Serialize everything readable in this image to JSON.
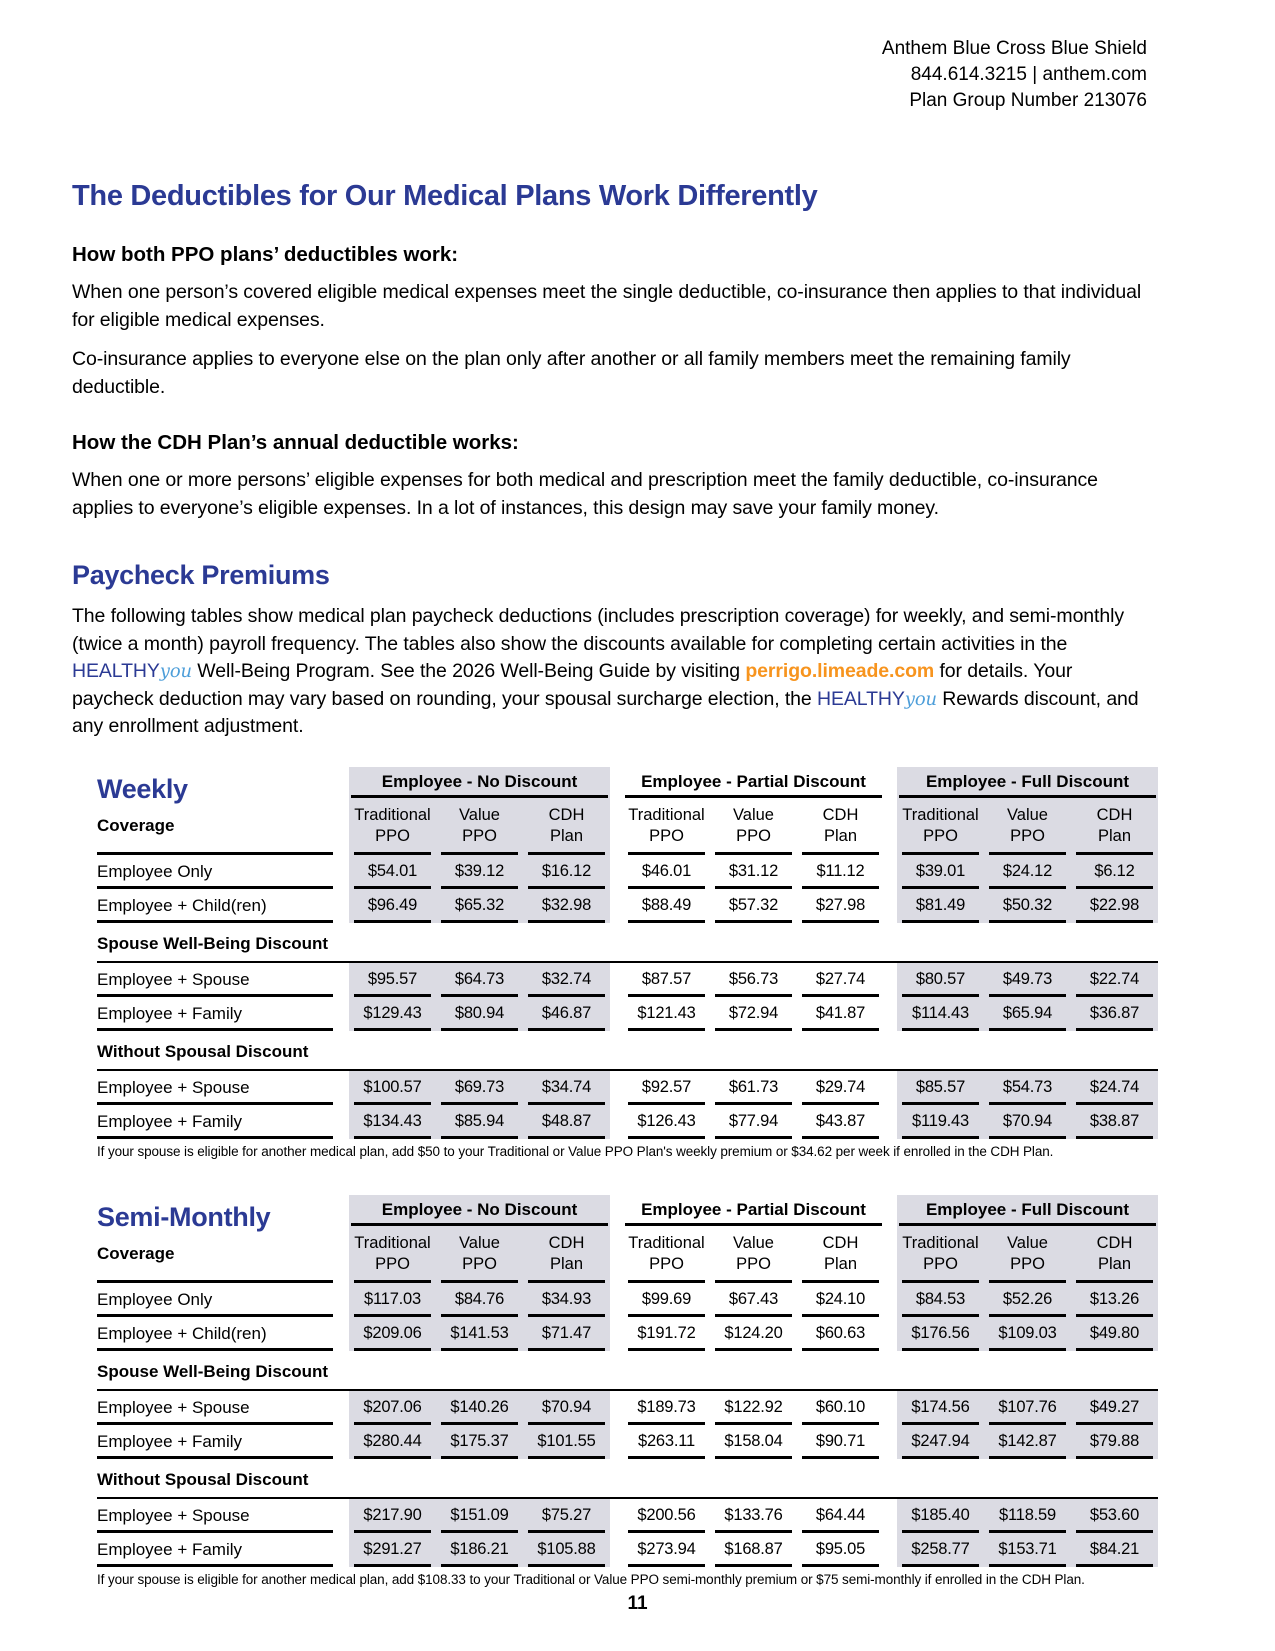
{
  "header": {
    "line1": "Anthem Blue Cross Blue Shield",
    "line2": "844.614.3215 | anthem.com",
    "line3": "Plan Group Number 213076"
  },
  "deductibles": {
    "title": "The Deductibles for Our Medical Plans Work Differently",
    "ppo_heading": "How both PPO plans’ deductibles work:",
    "ppo_para1": "When one person’s covered eligible medical expenses meet the single deductible, co-insurance then applies to that individual for eligible medical expenses.",
    "ppo_para2": "Co-insurance applies to everyone else on the plan only after another or all family members meet the remaining family deductible.",
    "cdh_heading": "How the CDH Plan’s annual deductible works:",
    "cdh_para": "When one or more persons’ eligible expenses for both medical and prescription meet the family deductible, co-insurance applies to everyone’s eligible expenses. In a lot of instances, this design may save your family money."
  },
  "premiums": {
    "title": "Paycheck Premiums",
    "intro_part1": "The following tables show medical plan paycheck deductions (includes prescription coverage) for weekly, and semi-monthly (twice a month) payroll frequency. The tables also show the discounts available for completing certain activities in the ",
    "healthy_brand": "HEALTHY",
    "healthy_script": "you",
    "intro_part2": " Well-Being Program. See the 2026 Well-Being Guide by visiting ",
    "link": "perrigo.limeade.com",
    "intro_part3": " for details. Your paycheck deduction may vary based on rounding, your spousal surcharge election, the ",
    "intro_part4": " Rewards discount, and any enrollment adjustment."
  },
  "tables": [
    {
      "title": "Weekly",
      "coverage_label": "Coverage",
      "groups": [
        "Employee - No Discount",
        "Employee - Partial Discount",
        "Employee - Full Discount"
      ],
      "columns": [
        "Traditional\nPPO",
        "Value\nPPO",
        "CDH\nPlan"
      ],
      "rows": [
        {
          "type": "data",
          "label": "Employee Only",
          "values": [
            "$54.01",
            "$39.12",
            "$16.12",
            "$46.01",
            "$31.12",
            "$11.12",
            "$39.01",
            "$24.12",
            "$6.12"
          ]
        },
        {
          "type": "data",
          "label": "Employee + Child(ren)",
          "values": [
            "$96.49",
            "$65.32",
            "$32.98",
            "$88.49",
            "$57.32",
            "$27.98",
            "$81.49",
            "$50.32",
            "$22.98"
          ]
        },
        {
          "type": "section",
          "label": "Spouse Well-Being Discount"
        },
        {
          "type": "data",
          "label": "Employee + Spouse",
          "values": [
            "$95.57",
            "$64.73",
            "$32.74",
            "$87.57",
            "$56.73",
            "$27.74",
            "$80.57",
            "$49.73",
            "$22.74"
          ]
        },
        {
          "type": "data",
          "label": "Employee + Family",
          "values": [
            "$129.43",
            "$80.94",
            "$46.87",
            "$121.43",
            "$72.94",
            "$41.87",
            "$114.43",
            "$65.94",
            "$36.87"
          ]
        },
        {
          "type": "section",
          "label": "Without Spousal Discount"
        },
        {
          "type": "data",
          "label": "Employee + Spouse",
          "values": [
            "$100.57",
            "$69.73",
            "$34.74",
            "$92.57",
            "$61.73",
            "$29.74",
            "$85.57",
            "$54.73",
            "$24.74"
          ]
        },
        {
          "type": "data",
          "label": "Employee + Family",
          "values": [
            "$134.43",
            "$85.94",
            "$48.87",
            "$126.43",
            "$77.94",
            "$43.87",
            "$119.43",
            "$70.94",
            "$38.87"
          ]
        }
      ],
      "footnote": "If your spouse is eligible for another medical plan, add $50 to your Traditional or Value PPO Plan's weekly premium or $34.62 per week if enrolled in the CDH Plan."
    },
    {
      "title": "Semi-Monthly",
      "coverage_label": "Coverage",
      "groups": [
        "Employee - No Discount",
        "Employee - Partial Discount",
        "Employee - Full Discount"
      ],
      "columns": [
        "Traditional\nPPO",
        "Value\nPPO",
        "CDH\nPlan"
      ],
      "rows": [
        {
          "type": "data",
          "label": "Employee Only",
          "values": [
            "$117.03",
            "$84.76",
            "$34.93",
            "$99.69",
            "$67.43",
            "$24.10",
            "$84.53",
            "$52.26",
            "$13.26"
          ]
        },
        {
          "type": "data",
          "label": "Employee + Child(ren)",
          "values": [
            "$209.06",
            "$141.53",
            "$71.47",
            "$191.72",
            "$124.20",
            "$60.63",
            "$176.56",
            "$109.03",
            "$49.80"
          ]
        },
        {
          "type": "section",
          "label": "Spouse Well-Being Discount"
        },
        {
          "type": "data",
          "label": "Employee + Spouse",
          "values": [
            "$207.06",
            "$140.26",
            "$70.94",
            "$189.73",
            "$122.92",
            "$60.10",
            "$174.56",
            "$107.76",
            "$49.27"
          ]
        },
        {
          "type": "data",
          "label": "Employee + Family",
          "values": [
            "$280.44",
            "$175.37",
            "$101.55",
            "$263.11",
            "$158.04",
            "$90.71",
            "$247.94",
            "$142.87",
            "$79.88"
          ]
        },
        {
          "type": "section",
          "label": "Without Spousal Discount"
        },
        {
          "type": "data",
          "label": "Employee + Spouse",
          "values": [
            "$217.90",
            "$151.09",
            "$75.27",
            "$200.56",
            "$133.76",
            "$64.44",
            "$185.40",
            "$118.59",
            "$53.60"
          ]
        },
        {
          "type": "data",
          "label": "Employee + Family",
          "values": [
            "$291.27",
            "$186.21",
            "$105.88",
            "$273.94",
            "$168.87",
            "$95.05",
            "$258.77",
            "$153.71",
            "$84.21"
          ]
        }
      ],
      "footnote": "If your spouse is eligible for another medical plan, add $108.33 to your Traditional or Value PPO semi-monthly premium or $75 semi-monthly if enrolled in the CDH Plan."
    }
  ],
  "colors": {
    "heading_blue": "#2B3A94",
    "script_blue": "#4D9ED9",
    "link_orange": "#F7941E",
    "table_gray": "#DBDBE3"
  },
  "page_number": "11"
}
